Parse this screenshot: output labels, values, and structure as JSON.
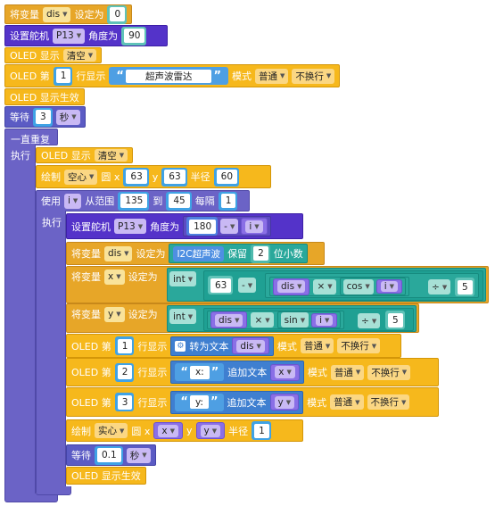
{
  "blocks": {
    "set_var": {
      "prefix": "将变量",
      "var": "dis",
      "mid": "设定为",
      "value": "0"
    },
    "servo1": {
      "prefix": "设置舵机",
      "pin": "P13",
      "mid": "角度为",
      "value": "90"
    },
    "oled_clear1": {
      "prefix": "OLED 显示",
      "action": "清空"
    },
    "oled_line1": {
      "prefix": "OLED 第",
      "line": "1",
      "mid": "行显示",
      "text": "超声波雷达",
      "mode_label": "模式",
      "mode": "普通",
      "wrap": "不换行"
    },
    "oled_show1": {
      "label": "OLED 显示生效"
    },
    "wait1": {
      "prefix": "等待",
      "value": "3",
      "unit": "秒"
    },
    "forever": {
      "label": "一直重复",
      "do": "执行"
    },
    "oled_clear2": {
      "prefix": "OLED 显示",
      "action": "清空"
    },
    "draw_circle1": {
      "prefix": "绘制",
      "fill": "空心",
      "shape": "圆 x",
      "x": "63",
      "y_label": "y",
      "y": "63",
      "r_label": "半径",
      "r": "60"
    },
    "for_loop": {
      "prefix": "使用",
      "var": "i",
      "from": "从范围",
      "start": "135",
      "to": "到",
      "end": "45",
      "step_label": "每隔",
      "step": "1",
      "do": "执行"
    },
    "servo2": {
      "prefix": "设置舵机",
      "pin": "P13",
      "mid": "角度为",
      "a": "180",
      "op": "-",
      "b": "i"
    },
    "set_dis": {
      "prefix": "将变量",
      "var": "dis",
      "mid": "设定为",
      "sensor": "I2C超声波",
      "keep": "保留",
      "digits": "2",
      "suffix": "位小数"
    },
    "set_x": {
      "prefix": "将变量",
      "var": "x",
      "mid": "设定为",
      "cast": "int",
      "c": "63",
      "op1": "-",
      "v": "dis",
      "op2": "×",
      "fn": "cos",
      "arg": "i",
      "op3": "÷",
      "d": "5"
    },
    "set_y": {
      "prefix": "将变量",
      "var": "y",
      "mid": "设定为",
      "cast": "int",
      "v": "dis",
      "op2": "×",
      "fn": "sin",
      "arg": "i",
      "op3": "÷",
      "d": "5"
    },
    "oled_l1": {
      "prefix": "OLED 第",
      "line": "1",
      "mid": "行显示",
      "conv": "转为文本",
      "var": "dis",
      "mode_label": "模式",
      "mode": "普通",
      "wrap": "不换行"
    },
    "oled_l2": {
      "prefix": "OLED 第",
      "line": "2",
      "mid": "行显示",
      "text": "x:",
      "append": "追加文本",
      "var": "x",
      "mode_label": "模式",
      "mode": "普通",
      "wrap": "不换行"
    },
    "oled_l3": {
      "prefix": "OLED 第",
      "line": "3",
      "mid": "行显示",
      "text": "y:",
      "append": "追加文本",
      "var": "y",
      "mode_label": "模式",
      "mode": "普通",
      "wrap": "不换行"
    },
    "draw_circle2": {
      "prefix": "绘制",
      "fill": "实心",
      "shape": "圆 x",
      "x": "x",
      "y_label": "y",
      "y": "y",
      "r_label": "半径",
      "r": "1"
    },
    "wait2": {
      "prefix": "等待",
      "value": "0.1",
      "unit": "秒"
    },
    "oled_show2": {
      "label": "OLED 显示生效"
    }
  }
}
